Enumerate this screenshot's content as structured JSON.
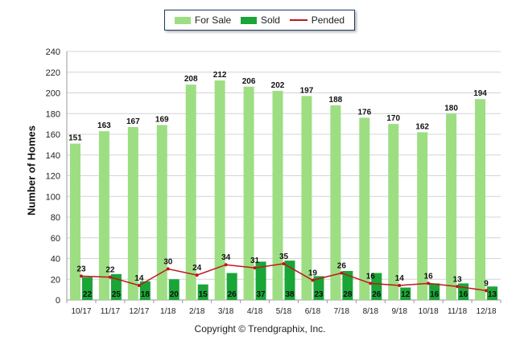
{
  "chart_data": {
    "type": "bar",
    "title": "",
    "xlabel": "",
    "ylabel": "Number of Homes",
    "ylim": [
      0,
      240
    ],
    "yticks": [
      0,
      20,
      40,
      60,
      80,
      100,
      120,
      140,
      160,
      180,
      200,
      220,
      240
    ],
    "categories": [
      "10/17",
      "11/17",
      "12/17",
      "1/18",
      "2/18",
      "3/18",
      "4/18",
      "5/18",
      "6/18",
      "7/18",
      "8/18",
      "9/18",
      "10/18",
      "11/18",
      "12/18"
    ],
    "series": [
      {
        "name": "For Sale",
        "kind": "bar",
        "color": "#9dde83",
        "values": [
          151,
          163,
          167,
          169,
          208,
          212,
          206,
          202,
          197,
          188,
          176,
          170,
          162,
          180,
          194
        ]
      },
      {
        "name": "Sold",
        "kind": "bar",
        "color": "#1aa537",
        "values": [
          22,
          25,
          18,
          20,
          15,
          26,
          37,
          38,
          23,
          28,
          26,
          12,
          16,
          16,
          13
        ]
      },
      {
        "name": "Pended",
        "kind": "line",
        "color": "#c0161a",
        "values": [
          23,
          22,
          14,
          30,
          24,
          34,
          31,
          35,
          19,
          26,
          16,
          14,
          16,
          13,
          9
        ]
      }
    ],
    "grid": true,
    "legend_position": "top-center"
  },
  "footer": "Copyright © Trendgraphix, Inc."
}
